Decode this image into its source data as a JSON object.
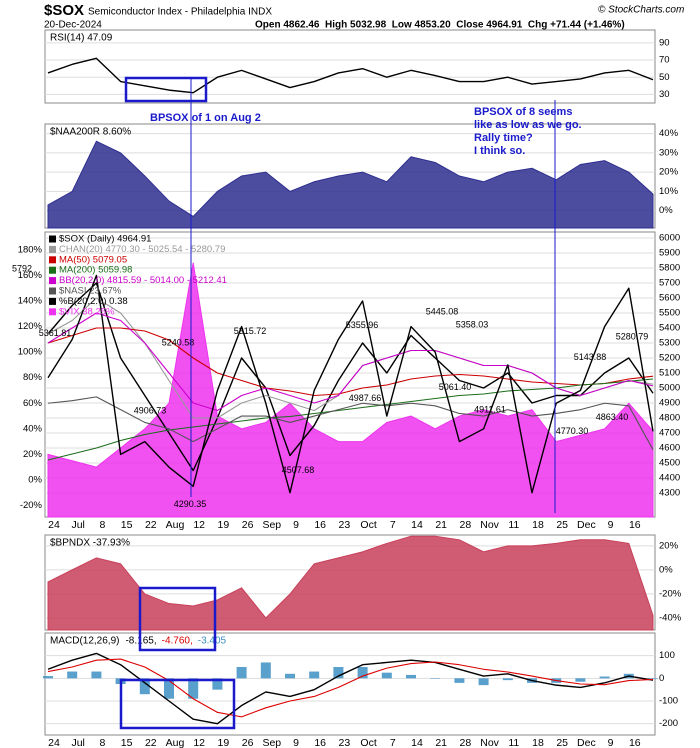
{
  "header": {
    "symbol": "$SOX",
    "name": "Semiconductor Index - Philadelphia INDX",
    "date": "20-Dec-2024",
    "quote": "Open 4862.46  High 5032.98  Low 4853.20  Close 4964.91  Chg +71.44 (+1.46%)",
    "credit": "© StockCharts.com"
  },
  "annotations": {
    "aug": "BPSOX of 1 on Aug 2",
    "nov": [
      "BPSOX of 8 seems",
      "like as low as we go.",
      "Rally time?",
      "I think so."
    ]
  },
  "chart_data": [
    {
      "type": "line",
      "title": "RSI(14) 47.09",
      "kind": "line",
      "color": "#000000",
      "values": [
        55,
        65,
        72,
        45,
        40,
        35,
        32,
        50,
        58,
        48,
        38,
        45,
        55,
        60,
        50,
        58,
        52,
        45,
        45,
        50,
        42,
        45,
        48,
        55,
        58,
        47.09
      ],
      "ylim": [
        20,
        105
      ],
      "yticks": [
        90,
        70,
        50,
        30
      ],
      "grid": true
    },
    {
      "type": "area",
      "title": "$NAA200R 8.60%",
      "kind": "area",
      "color": "#2e2e8f",
      "values": [
        3,
        10,
        36,
        30,
        18,
        5,
        -3,
        10,
        18,
        20,
        10,
        15,
        18,
        20,
        15,
        28,
        25,
        18,
        15,
        20,
        22,
        16,
        24,
        26,
        20,
        8.6
      ],
      "ylim": [
        -9,
        45
      ],
      "yticks": [
        {
          "value": 40,
          "label": "40%"
        },
        {
          "value": 30,
          "label": "30%"
        },
        {
          "value": 20,
          "label": "20%"
        },
        {
          "value": 10,
          "label": "10%"
        },
        {
          "value": 0,
          "label": "0%"
        }
      ],
      "grid": true
    },
    {
      "type": "line",
      "categories": [
        "24",
        "Jul",
        "8",
        "15",
        "22",
        "Aug",
        "12",
        "19",
        "26",
        "Sep",
        "9",
        "16",
        "23",
        "Oct",
        "7",
        "14",
        "21",
        "28",
        "Nov",
        "11",
        "18",
        "25",
        "Dec",
        "9",
        "16",
        null
      ],
      "ylim": [
        4140,
        6040
      ],
      "yticks": [
        6000,
        5900,
        5800,
        5700,
        5600,
        5500,
        5400,
        5300,
        5200,
        5100,
        5000,
        4900,
        4800,
        4700,
        4600,
        4500,
        4400,
        4300
      ],
      "y2lim": [
        -29,
        194
      ],
      "y2ticks": [
        {
          "value": 180,
          "label": "180%"
        },
        {
          "value": 160,
          "label": "160%"
        },
        {
          "value": 140,
          "label": "140%"
        },
        {
          "value": 120,
          "label": "120%"
        },
        {
          "value": 100,
          "label": "100%"
        },
        {
          "value": 80,
          "label": "80%"
        },
        {
          "value": 60,
          "label": "60%"
        },
        {
          "value": 40,
          "label": "40%"
        },
        {
          "value": 20,
          "label": "20%"
        },
        {
          "value": 0,
          "label": "0%"
        },
        {
          "value": -20,
          "label": "-20%"
        }
      ],
      "grid": true,
      "series": [
        {
          "name": "$SOX (Daily) 4964.91",
          "color": "#000000",
          "kind": "line",
          "values": [
            5360,
            5550,
            5700,
            5200,
            4950,
            4700,
            4450,
            4800,
            5200,
            5000,
            4550,
            4750,
            5050,
            5300,
            5100,
            5350,
            5200,
            5050,
            5000,
            5100,
            4900,
            4950,
            4950,
            5100,
            5200,
            4964.91
          ]
        },
        {
          "name": "CHAN(20) 4770.30 - 5025.54 - 5280.79",
          "color": "#999999",
          "kind": "line",
          "values": [
            5360,
            5450,
            5600,
            5500,
            5300,
            5050,
            4800,
            4800,
            4900,
            4950,
            4900,
            4850,
            4950,
            5150,
            5200,
            5250,
            5250,
            5200,
            5150,
            5150,
            5100,
            5000,
            4950,
            5000,
            5050,
            5025.54
          ]
        },
        {
          "name": "MA(50) 5079.05",
          "color": "#cc0000",
          "kind": "line",
          "values": [
            5300,
            5350,
            5400,
            5400,
            5380,
            5320,
            5200,
            5100,
            5050,
            5000,
            4980,
            4950,
            4960,
            5000,
            5020,
            5060,
            5080,
            5090,
            5080,
            5060,
            5040,
            5030,
            5020,
            5030,
            5060,
            5079.05
          ]
        },
        {
          "name": "MA(200) 5059.98",
          "color": "#1a6e1a",
          "kind": "line",
          "values": [
            4520,
            4560,
            4600,
            4650,
            4690,
            4720,
            4740,
            4760,
            4780,
            4800,
            4810,
            4830,
            4850,
            4870,
            4890,
            4910,
            4930,
            4950,
            4960,
            4980,
            4990,
            5000,
            5020,
            5030,
            5045,
            5059.98
          ]
        },
        {
          "name": "BB(20,2.0) 4815.59 - 5014.00 - 5212.41",
          "color": "#cc00cc",
          "kind": "line",
          "values": [
            5300,
            5400,
            5500,
            5450,
            5300,
            5100,
            4900,
            4850,
            4950,
            5000,
            4950,
            4900,
            4950,
            5150,
            5200,
            5250,
            5250,
            5200,
            5150,
            5150,
            5100,
            5000,
            4950,
            5000,
            5050,
            5014
          ]
        },
        {
          "name": "$NASI 23.67%",
          "color": "#555555",
          "kind": "line",
          "axis": "y2",
          "values": [
            60,
            62,
            65,
            55,
            45,
            40,
            30,
            40,
            50,
            50,
            45,
            50,
            55,
            60,
            58,
            60,
            58,
            52,
            50,
            55,
            50,
            52,
            55,
            60,
            58,
            23.67
          ]
        },
        {
          "name": "%B(20,2.0) 0.38",
          "color": "#000000",
          "kind": "line",
          "axis": "y2",
          "values": [
            80,
            110,
            160,
            20,
            30,
            10,
            -5,
            70,
            120,
            60,
            -10,
            70,
            110,
            140,
            50,
            120,
            100,
            30,
            40,
            90,
            -10,
            60,
            70,
            120,
            150,
            38
          ]
        },
        {
          "name": "$VIX 38.25%",
          "color": "#ee33ee",
          "kind": "area",
          "axis": "y2",
          "values": [
            20,
            15,
            10,
            25,
            40,
            60,
            170,
            50,
            40,
            45,
            60,
            40,
            30,
            30,
            45,
            50,
            40,
            50,
            55,
            50,
            55,
            30,
            35,
            40,
            60,
            38.25
          ]
        }
      ],
      "point_labels": [
        {
          "value": 5361.81
        },
        {
          "value": 5792
        },
        {
          "value": 5240.58
        },
        {
          "value": 4906.73
        },
        {
          "value": 4290.35
        },
        {
          "value": 5315.72
        },
        {
          "value": 4507.68
        },
        {
          "value": 5355.96
        },
        {
          "value": 4987.66
        },
        {
          "value": 5445.08
        },
        {
          "value": 5358.03
        },
        {
          "value": 5061.4,
          "label": "5061.40"
        },
        {
          "value": 4911.61
        },
        {
          "value": 4770.3,
          "label": "4770.30"
        },
        {
          "value": 5143.88
        },
        {
          "value": 5280.79
        },
        {
          "value": 4863.4,
          "label": "4863.40"
        }
      ]
    },
    {
      "type": "area",
      "title": "$BPNDX -37.93%",
      "kind": "area",
      "color": "#c8405a",
      "values": [
        -10,
        0,
        10,
        5,
        -20,
        -28,
        -30,
        -25,
        -15,
        -40,
        -20,
        5,
        10,
        15,
        22,
        28,
        28,
        25,
        15,
        20,
        20,
        22,
        25,
        25,
        22,
        -37.93
      ],
      "ylim": [
        -50,
        29
      ],
      "yticks": [
        {
          "value": 20,
          "label": "20%"
        },
        {
          "value": 0,
          "label": "0%"
        },
        {
          "value": -20,
          "label": "-20%"
        },
        {
          "value": -40,
          "label": "-40%"
        }
      ],
      "grid": true
    },
    {
      "type": "line",
      "title": "MACD(12,26,9)",
      "categories": [
        "24",
        "Jul",
        "8",
        "15",
        "22",
        "Aug",
        "12",
        "19",
        "26",
        "Sep",
        "9",
        "16",
        "23",
        "Oct",
        "7",
        "14",
        "21",
        "28",
        "Nov",
        "11",
        "18",
        "25",
        "Dec",
        "9",
        "16",
        null
      ],
      "ylim": [
        -250,
        200
      ],
      "yticks": [
        100,
        0,
        -100,
        -200
      ],
      "grid": true,
      "series": [
        {
          "name": "-8.165,",
          "color": "#000000",
          "kind": "line",
          "values": [
            40,
            80,
            110,
            60,
            -20,
            -100,
            -180,
            -200,
            -120,
            -60,
            -80,
            -50,
            10,
            60,
            70,
            80,
            70,
            40,
            10,
            20,
            -10,
            -30,
            -40,
            -20,
            10,
            -8.165
          ]
        },
        {
          "name": "-4.760,",
          "color": "#dd0000",
          "kind": "line",
          "values": [
            30,
            50,
            80,
            85,
            50,
            -10,
            -90,
            -150,
            -170,
            -130,
            -100,
            -80,
            -40,
            10,
            45,
            65,
            72,
            60,
            40,
            28,
            10,
            -10,
            -25,
            -28,
            -10,
            -4.76
          ]
        },
        {
          "name": "-3.405",
          "color": "#3d8fc4",
          "kind": "bar",
          "values": [
            10,
            30,
            30,
            -25,
            -70,
            -90,
            -90,
            -50,
            50,
            70,
            20,
            30,
            50,
            50,
            25,
            15,
            -2,
            -20,
            -30,
            -8,
            -20,
            -20,
            -15,
            8,
            20,
            -3.405
          ]
        }
      ]
    }
  ]
}
